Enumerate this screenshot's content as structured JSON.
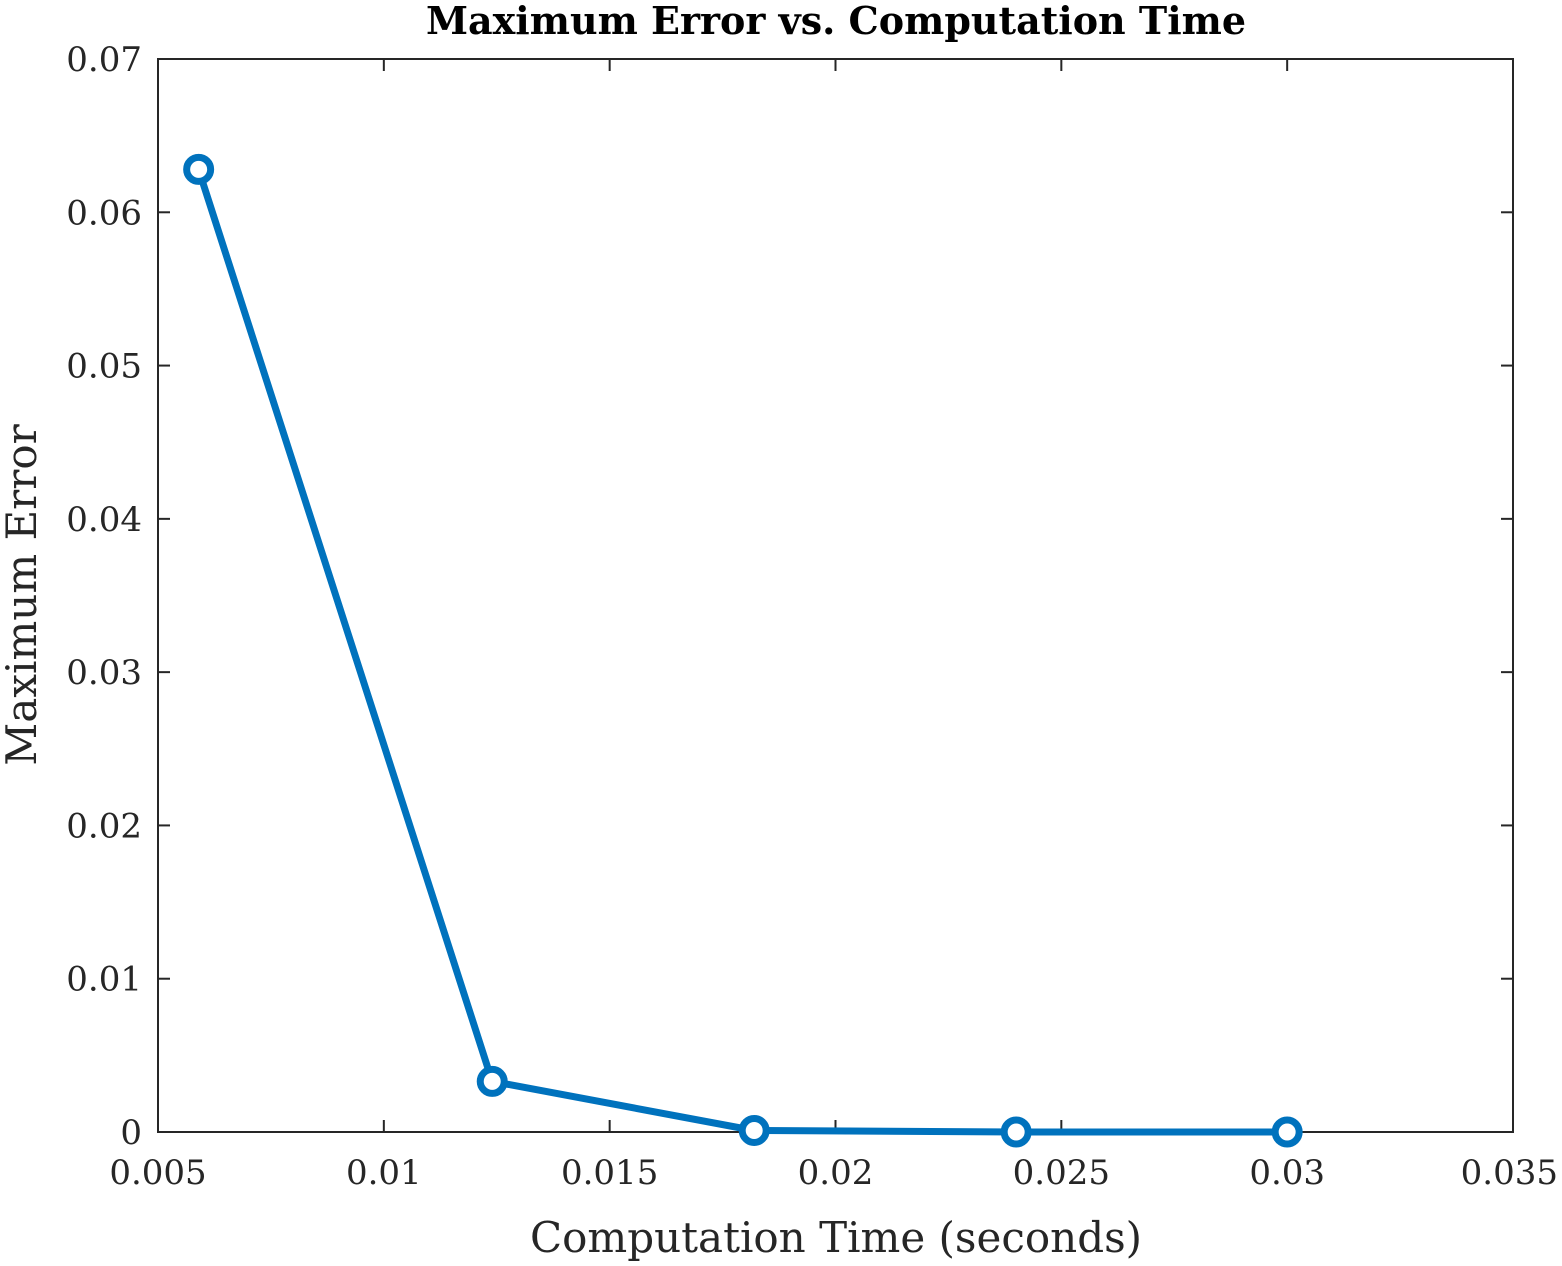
{
  "chart_data": {
    "type": "line",
    "title": "Maximum Error vs. Computation Time",
    "xlabel": "Computation Time (seconds)",
    "ylabel": "Maximum Error",
    "xlim": [
      0.005,
      0.035
    ],
    "ylim": [
      0,
      0.07
    ],
    "x_ticks": [
      "0.005",
      "0.01",
      "0.015",
      "0.02",
      "0.025",
      "0.03",
      "0.035"
    ],
    "y_ticks": [
      "0",
      "0.01",
      "0.02",
      "0.03",
      "0.04",
      "0.05",
      "0.06",
      "0.07"
    ],
    "grid": false,
    "legend": "none",
    "series": [
      {
        "color": "#0072BD",
        "marker": "circle",
        "x": [
          0.0059,
          0.0124,
          0.0182,
          0.024,
          0.03
        ],
        "y": [
          0.0628,
          0.0033,
          0.0001,
          0.0,
          0.0
        ]
      }
    ]
  }
}
